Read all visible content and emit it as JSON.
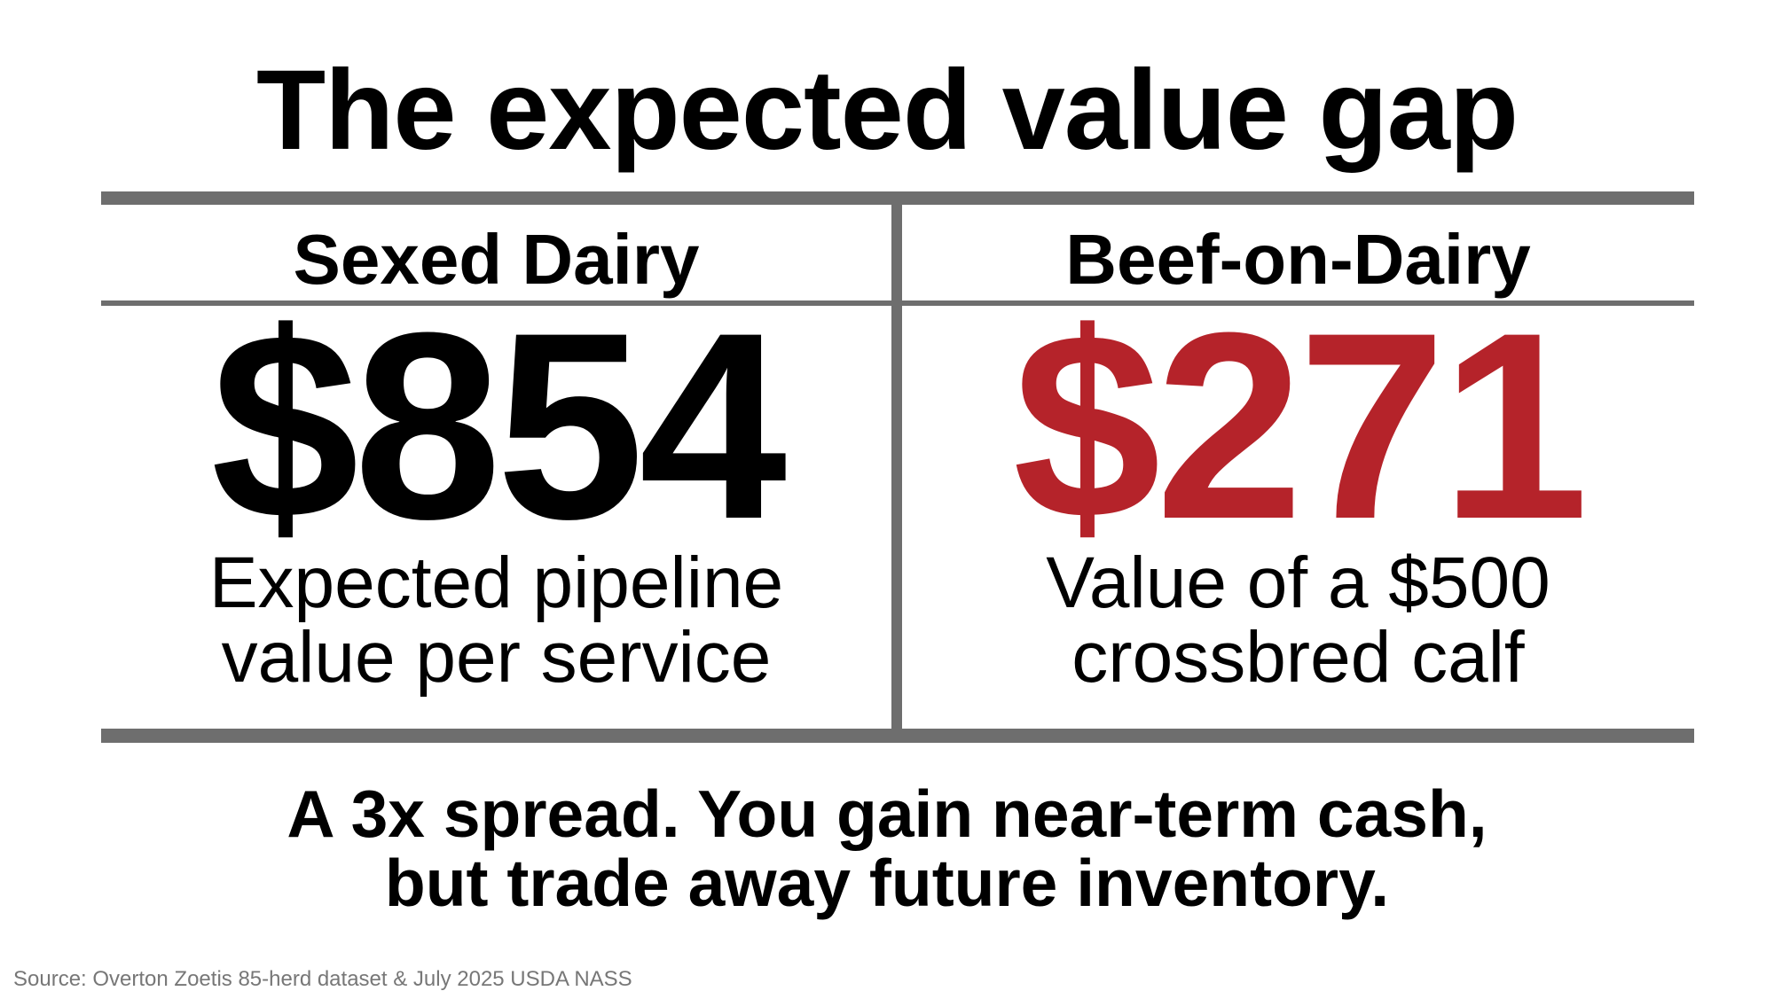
{
  "title": "The expected value gap",
  "columns": [
    {
      "heading": "Sexed Dairy",
      "value": "$854",
      "caption": [
        "Expected pipeline",
        "value per service"
      ]
    },
    {
      "heading": "Beef-on-Dairy",
      "value": "$271",
      "caption": [
        "Value of a $500",
        "crossbred calf"
      ]
    }
  ],
  "conclusion": [
    "A 3x spread. You gain near-term cash,",
    "but trade away future inventory."
  ],
  "source": "Source: Overton Zoetis 85-herd dataset & July 2025 USDA NASS"
}
